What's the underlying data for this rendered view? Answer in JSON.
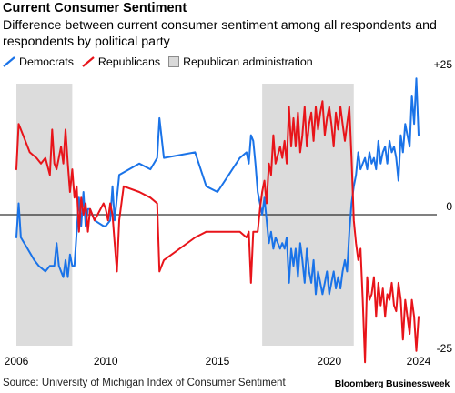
{
  "chart_data": {
    "type": "line",
    "title": "Current Consumer Sentiment",
    "subtitle": "Difference between current consumer sentiment among all respondents and respondents by political party",
    "xlabel": "",
    "ylabel": "",
    "xlim": [
      2006,
      2025
    ],
    "ylim": [
      -27,
      28
    ],
    "x_ticks": [
      2006,
      2010,
      2015,
      2020,
      2024
    ],
    "y_ticks": [
      {
        "value": 25,
        "label": "+25"
      },
      {
        "value": 0,
        "label": "0"
      },
      {
        "value": -25,
        "label": "-25"
      }
    ],
    "grid": false,
    "legend_position": "top-left",
    "shaded_periods": [
      {
        "start": 2006.0,
        "end": 2008.5
      },
      {
        "start": 2017.0,
        "end": 2021.1
      }
    ],
    "series": [
      {
        "name": "Democrats",
        "color": "#1a73e8",
        "points": [
          [
            2006.0,
            -4
          ],
          [
            2006.1,
            2
          ],
          [
            2006.2,
            -4
          ],
          [
            2006.5,
            -6
          ],
          [
            2006.8,
            -8
          ],
          [
            2007.0,
            -9
          ],
          [
            2007.3,
            -10
          ],
          [
            2007.5,
            -9
          ],
          [
            2007.7,
            -9
          ],
          [
            2007.8,
            -5
          ],
          [
            2007.9,
            -9
          ],
          [
            2008.0,
            -10
          ],
          [
            2008.1,
            -11
          ],
          [
            2008.2,
            -8
          ],
          [
            2008.3,
            -11
          ],
          [
            2008.4,
            -7
          ],
          [
            2008.5,
            -9
          ],
          [
            2008.6,
            -9
          ],
          [
            2008.7,
            -3
          ],
          [
            2008.8,
            3
          ],
          [
            2008.9,
            -2
          ],
          [
            2009.0,
            4
          ],
          [
            2009.1,
            -2
          ],
          [
            2009.2,
            1
          ],
          [
            2009.3,
            1
          ],
          [
            2009.5,
            -1
          ],
          [
            2009.9,
            -2
          ],
          [
            2010.0,
            -2
          ],
          [
            2010.2,
            -1
          ],
          [
            2010.3,
            5
          ],
          [
            2010.4,
            -1
          ],
          [
            2010.6,
            7
          ],
          [
            2011.5,
            9
          ],
          [
            2012.0,
            8
          ],
          [
            2012.3,
            10
          ],
          [
            2012.4,
            17
          ],
          [
            2012.6,
            10
          ],
          [
            2014.0,
            11
          ],
          [
            2014.5,
            5
          ],
          [
            2015.0,
            4
          ],
          [
            2015.5,
            7
          ],
          [
            2016.0,
            10
          ],
          [
            2016.3,
            11
          ],
          [
            2016.4,
            9
          ],
          [
            2016.5,
            14
          ],
          [
            2016.6,
            13
          ],
          [
            2016.7,
            9
          ],
          [
            2016.8,
            4
          ],
          [
            2016.9,
            2
          ],
          [
            2017.0,
            0
          ],
          [
            2017.1,
            3
          ],
          [
            2017.2,
            -1
          ],
          [
            2017.3,
            -5
          ],
          [
            2017.4,
            -3
          ],
          [
            2017.5,
            -6
          ],
          [
            2017.6,
            -4
          ],
          [
            2017.8,
            -6
          ],
          [
            2017.9,
            -5
          ],
          [
            2018.0,
            -6
          ],
          [
            2018.1,
            -4
          ],
          [
            2018.2,
            -12
          ],
          [
            2018.3,
            -6
          ],
          [
            2018.4,
            -9
          ],
          [
            2018.5,
            -6
          ],
          [
            2018.6,
            -11
          ],
          [
            2018.7,
            -5
          ],
          [
            2018.8,
            -8
          ],
          [
            2018.9,
            -12
          ],
          [
            2019.0,
            -6
          ],
          [
            2019.1,
            -10
          ],
          [
            2019.2,
            -12
          ],
          [
            2019.3,
            -8
          ],
          [
            2019.4,
            -14
          ],
          [
            2019.5,
            -10
          ],
          [
            2019.6,
            -12
          ],
          [
            2019.7,
            -14
          ],
          [
            2019.8,
            -12
          ],
          [
            2019.9,
            -10
          ],
          [
            2020.0,
            -14
          ],
          [
            2020.1,
            -12
          ],
          [
            2020.2,
            -10
          ],
          [
            2020.3,
            -13
          ],
          [
            2020.4,
            -11
          ],
          [
            2020.5,
            -13
          ],
          [
            2020.6,
            -10
          ],
          [
            2020.7,
            -8
          ],
          [
            2020.8,
            -10
          ],
          [
            2020.9,
            -3
          ],
          [
            2021.0,
            2
          ],
          [
            2021.1,
            5
          ],
          [
            2021.2,
            7
          ],
          [
            2021.3,
            11
          ],
          [
            2021.4,
            8
          ],
          [
            2021.5,
            9
          ],
          [
            2021.6,
            10
          ],
          [
            2021.7,
            8
          ],
          [
            2021.8,
            11
          ],
          [
            2021.9,
            9
          ],
          [
            2022.0,
            10
          ],
          [
            2022.1,
            8
          ],
          [
            2022.2,
            13
          ],
          [
            2022.3,
            9
          ],
          [
            2022.4,
            11
          ],
          [
            2022.5,
            12
          ],
          [
            2022.6,
            9
          ],
          [
            2022.7,
            13
          ],
          [
            2022.8,
            11
          ],
          [
            2022.9,
            12
          ],
          [
            2023.0,
            10
          ],
          [
            2023.1,
            6
          ],
          [
            2023.2,
            14
          ],
          [
            2023.3,
            11
          ],
          [
            2023.4,
            16
          ],
          [
            2023.5,
            14
          ],
          [
            2023.6,
            12
          ],
          [
            2023.7,
            21
          ],
          [
            2023.8,
            16
          ],
          [
            2023.9,
            24
          ],
          [
            2024.0,
            14
          ]
        ]
      },
      {
        "name": "Republicans",
        "color": "#e8141a",
        "points": [
          [
            2006.0,
            8
          ],
          [
            2006.1,
            16
          ],
          [
            2006.3,
            14
          ],
          [
            2006.6,
            11
          ],
          [
            2006.9,
            10
          ],
          [
            2007.1,
            9
          ],
          [
            2007.3,
            10
          ],
          [
            2007.5,
            7
          ],
          [
            2007.6,
            15
          ],
          [
            2007.7,
            9
          ],
          [
            2007.8,
            8
          ],
          [
            2008.0,
            12
          ],
          [
            2008.1,
            9
          ],
          [
            2008.2,
            15
          ],
          [
            2008.3,
            9
          ],
          [
            2008.4,
            4
          ],
          [
            2008.5,
            8
          ],
          [
            2008.6,
            3
          ],
          [
            2008.7,
            5
          ],
          [
            2008.8,
            -3
          ],
          [
            2008.9,
            3
          ],
          [
            2009.0,
            0
          ],
          [
            2009.1,
            2
          ],
          [
            2009.2,
            -3
          ],
          [
            2009.3,
            1
          ],
          [
            2009.5,
            -1
          ],
          [
            2009.9,
            2
          ],
          [
            2010.0,
            1
          ],
          [
            2010.1,
            -1
          ],
          [
            2010.2,
            2
          ],
          [
            2010.3,
            0
          ],
          [
            2010.4,
            -5
          ],
          [
            2010.5,
            -10
          ],
          [
            2010.6,
            -1
          ],
          [
            2010.8,
            5
          ],
          [
            2011.5,
            4
          ],
          [
            2012.0,
            3
          ],
          [
            2012.3,
            2
          ],
          [
            2012.4,
            -10
          ],
          [
            2012.6,
            -8
          ],
          [
            2014.0,
            -4
          ],
          [
            2014.5,
            -3
          ],
          [
            2015.0,
            -3
          ],
          [
            2016.0,
            -3
          ],
          [
            2016.3,
            -4
          ],
          [
            2016.4,
            -3
          ],
          [
            2016.5,
            -12
          ],
          [
            2016.6,
            -3
          ],
          [
            2016.8,
            -3
          ],
          [
            2016.9,
            1
          ],
          [
            2017.0,
            4
          ],
          [
            2017.1,
            6
          ],
          [
            2017.2,
            2
          ],
          [
            2017.3,
            9
          ],
          [
            2017.4,
            7
          ],
          [
            2017.5,
            14
          ],
          [
            2017.6,
            9
          ],
          [
            2017.8,
            12
          ],
          [
            2017.9,
            10
          ],
          [
            2018.0,
            13
          ],
          [
            2018.1,
            9
          ],
          [
            2018.2,
            19
          ],
          [
            2018.3,
            12
          ],
          [
            2018.4,
            17
          ],
          [
            2018.5,
            12
          ],
          [
            2018.6,
            18
          ],
          [
            2018.7,
            11
          ],
          [
            2018.8,
            14
          ],
          [
            2018.9,
            19
          ],
          [
            2019.0,
            12
          ],
          [
            2019.1,
            16
          ],
          [
            2019.2,
            18
          ],
          [
            2019.3,
            13
          ],
          [
            2019.4,
            19
          ],
          [
            2019.5,
            15
          ],
          [
            2019.6,
            18
          ],
          [
            2019.7,
            20
          ],
          [
            2019.8,
            14
          ],
          [
            2019.9,
            17
          ],
          [
            2020.0,
            19
          ],
          [
            2020.1,
            16
          ],
          [
            2020.2,
            12
          ],
          [
            2020.3,
            18
          ],
          [
            2020.4,
            15
          ],
          [
            2020.5,
            19
          ],
          [
            2020.6,
            16
          ],
          [
            2020.7,
            13
          ],
          [
            2020.8,
            16
          ],
          [
            2020.9,
            19
          ],
          [
            2021.0,
            10
          ],
          [
            2021.1,
            -1
          ],
          [
            2021.2,
            -5
          ],
          [
            2021.3,
            -8
          ],
          [
            2021.4,
            -6
          ],
          [
            2021.5,
            -15
          ],
          [
            2021.6,
            -26
          ],
          [
            2021.7,
            -11
          ],
          [
            2021.8,
            -15
          ],
          [
            2021.9,
            -14
          ],
          [
            2022.0,
            -11
          ],
          [
            2022.1,
            -18
          ],
          [
            2022.2,
            -12
          ],
          [
            2022.3,
            -16
          ],
          [
            2022.4,
            -13
          ],
          [
            2022.5,
            -18
          ],
          [
            2022.6,
            -14
          ],
          [
            2022.7,
            -15
          ],
          [
            2022.8,
            -12
          ],
          [
            2022.9,
            -16
          ],
          [
            2023.0,
            -17
          ],
          [
            2023.1,
            -12
          ],
          [
            2023.2,
            -15
          ],
          [
            2023.3,
            -22
          ],
          [
            2023.4,
            -15
          ],
          [
            2023.5,
            -18
          ],
          [
            2023.6,
            -21
          ],
          [
            2023.7,
            -15
          ],
          [
            2023.8,
            -18
          ],
          [
            2023.9,
            -24
          ],
          [
            2024.0,
            -18
          ]
        ]
      }
    ]
  },
  "legend": [
    {
      "label": "Democrats",
      "color": "#1a73e8",
      "kind": "line"
    },
    {
      "label": "Republicans",
      "color": "#e8141a",
      "kind": "line"
    },
    {
      "label": "Republican administration",
      "color": "#d9d9d9",
      "kind": "area"
    }
  ],
  "footer": {
    "source": "Source: University of Michigan Index of Consumer Sentiment",
    "brand": "Bloomberg Businessweek"
  }
}
